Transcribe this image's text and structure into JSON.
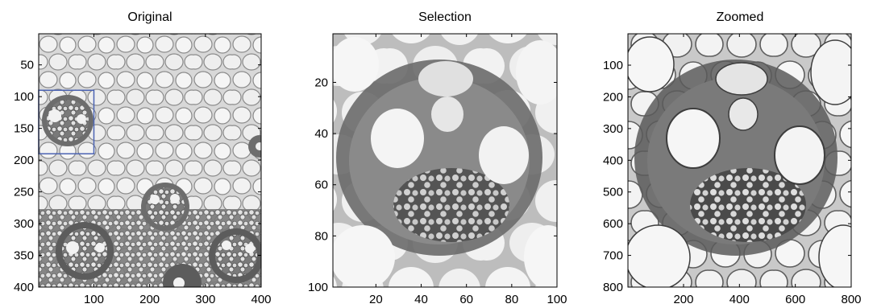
{
  "figure": {
    "panels": [
      {
        "id": "original",
        "title": "Original",
        "x_ticks": [
          "100",
          "200",
          "300",
          "400"
        ],
        "y_ticks": [
          "50",
          "100",
          "150",
          "200",
          "250",
          "300",
          "350",
          "400"
        ],
        "x_range": [
          1,
          400
        ],
        "y_range": [
          1,
          400
        ],
        "selection_box": {
          "x_range": [
            1,
            100
          ],
          "y_range": [
            90,
            190
          ],
          "color": "#4b63b3"
        }
      },
      {
        "id": "selection",
        "title": "Selection",
        "x_ticks": [
          "20",
          "40",
          "60",
          "80",
          "100"
        ],
        "y_ticks": [
          "20",
          "40",
          "60",
          "80",
          "100"
        ],
        "x_range": [
          1,
          100
        ],
        "y_range": [
          1,
          100
        ]
      },
      {
        "id": "zoomed",
        "title": "Zoomed",
        "x_ticks": [
          "200",
          "400",
          "600",
          "800"
        ],
        "y_ticks": [
          "100",
          "200",
          "300",
          "400",
          "500",
          "600",
          "700",
          "800"
        ],
        "x_range": [
          1,
          800
        ],
        "y_range": [
          1,
          800
        ]
      }
    ]
  }
}
